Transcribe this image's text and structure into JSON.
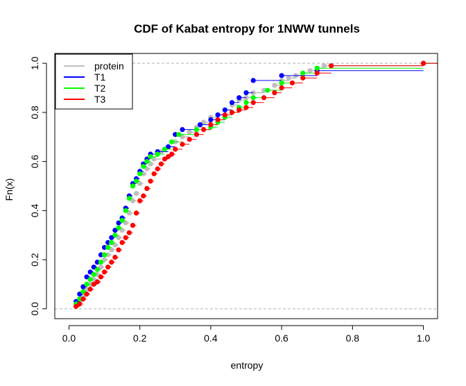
{
  "chart_data": {
    "type": "line",
    "title": "CDF of Kabat entropy for 1NWW  tunnels",
    "xlabel": "entropy",
    "ylabel": "Fn(x)",
    "xlim": [
      -0.04,
      1.04
    ],
    "ylim": [
      -0.04,
      1.04
    ],
    "x_ticks": [
      {
        "value": 0.0,
        "label": "0.0"
      },
      {
        "value": 0.2,
        "label": "0.2"
      },
      {
        "value": 0.4,
        "label": "0.4"
      },
      {
        "value": 0.6,
        "label": "0.6"
      },
      {
        "value": 0.8,
        "label": "0.8"
      },
      {
        "value": 1.0,
        "label": "1.0"
      }
    ],
    "y_ticks": [
      {
        "value": 0.0,
        "label": "0.0"
      },
      {
        "value": 0.2,
        "label": "0.2"
      },
      {
        "value": 0.4,
        "label": "0.4"
      },
      {
        "value": 0.6,
        "label": "0.6"
      },
      {
        "value": 0.8,
        "label": "0.8"
      },
      {
        "value": 1.0,
        "label": "1.0"
      }
    ],
    "reference_lines_y": [
      0,
      1
    ],
    "legend_position": "top-left",
    "series": [
      {
        "name": "protein",
        "color": "#bebebe",
        "x": [
          0.02,
          0.03,
          0.04,
          0.05,
          0.06,
          0.07,
          0.08,
          0.09,
          0.1,
          0.11,
          0.12,
          0.13,
          0.14,
          0.15,
          0.16,
          0.17,
          0.18,
          0.19,
          0.2,
          0.21,
          0.22,
          0.23,
          0.24,
          0.26,
          0.28,
          0.3,
          0.32,
          0.34,
          0.36,
          0.38,
          0.4,
          0.42,
          0.44,
          0.46,
          0.48,
          0.5,
          0.52,
          0.55,
          0.58,
          0.6,
          0.62,
          0.64,
          0.66,
          0.68,
          0.7,
          0.72,
          1.0
        ],
        "y": [
          0.01,
          0.03,
          0.05,
          0.08,
          0.1,
          0.12,
          0.14,
          0.17,
          0.2,
          0.22,
          0.24,
          0.26,
          0.29,
          0.32,
          0.35,
          0.39,
          0.44,
          0.47,
          0.51,
          0.55,
          0.57,
          0.59,
          0.61,
          0.64,
          0.66,
          0.68,
          0.7,
          0.72,
          0.74,
          0.76,
          0.78,
          0.79,
          0.81,
          0.83,
          0.85,
          0.86,
          0.88,
          0.89,
          0.91,
          0.93,
          0.94,
          0.95,
          0.96,
          0.97,
          0.98,
          0.99,
          1.0
        ]
      },
      {
        "name": "T1",
        "color": "#0000ff",
        "x": [
          0.02,
          0.03,
          0.04,
          0.05,
          0.06,
          0.07,
          0.08,
          0.09,
          0.1,
          0.11,
          0.12,
          0.13,
          0.14,
          0.15,
          0.16,
          0.17,
          0.18,
          0.19,
          0.2,
          0.21,
          0.22,
          0.23,
          0.25,
          0.28,
          0.3,
          0.32,
          0.37,
          0.4,
          0.42,
          0.44,
          0.46,
          0.48,
          0.5,
          0.52,
          0.6,
          0.7,
          1.0
        ],
        "y": [
          0.03,
          0.06,
          0.09,
          0.13,
          0.15,
          0.17,
          0.19,
          0.22,
          0.25,
          0.27,
          0.29,
          0.32,
          0.35,
          0.37,
          0.41,
          0.46,
          0.51,
          0.53,
          0.56,
          0.59,
          0.61,
          0.63,
          0.64,
          0.66,
          0.71,
          0.73,
          0.75,
          0.77,
          0.79,
          0.81,
          0.84,
          0.86,
          0.88,
          0.93,
          0.95,
          0.97,
          1.0
        ]
      },
      {
        "name": "T2",
        "color": "#00ff00",
        "x": [
          0.02,
          0.03,
          0.04,
          0.05,
          0.06,
          0.07,
          0.08,
          0.09,
          0.1,
          0.11,
          0.12,
          0.13,
          0.14,
          0.15,
          0.16,
          0.17,
          0.18,
          0.19,
          0.2,
          0.21,
          0.22,
          0.23,
          0.25,
          0.27,
          0.29,
          0.31,
          0.36,
          0.4,
          0.42,
          0.44,
          0.46,
          0.48,
          0.5,
          0.52,
          0.56,
          0.6,
          0.66,
          0.7,
          1.0
        ],
        "y": [
          0.02,
          0.04,
          0.07,
          0.1,
          0.12,
          0.14,
          0.16,
          0.19,
          0.22,
          0.25,
          0.27,
          0.3,
          0.33,
          0.36,
          0.4,
          0.45,
          0.5,
          0.52,
          0.55,
          0.58,
          0.6,
          0.62,
          0.63,
          0.65,
          0.68,
          0.71,
          0.73,
          0.74,
          0.76,
          0.78,
          0.8,
          0.82,
          0.84,
          0.86,
          0.89,
          0.92,
          0.96,
          0.98,
          1.0
        ]
      },
      {
        "name": "T3",
        "color": "#ff0000",
        "x": [
          0.02,
          0.03,
          0.04,
          0.05,
          0.06,
          0.07,
          0.08,
          0.09,
          0.1,
          0.11,
          0.12,
          0.13,
          0.14,
          0.15,
          0.16,
          0.17,
          0.18,
          0.19,
          0.2,
          0.21,
          0.22,
          0.23,
          0.24,
          0.25,
          0.26,
          0.27,
          0.28,
          0.29,
          0.3,
          0.32,
          0.34,
          0.36,
          0.38,
          0.4,
          0.42,
          0.44,
          0.46,
          0.48,
          0.5,
          0.52,
          0.55,
          0.58,
          0.6,
          0.63,
          0.66,
          0.7,
          0.74,
          1.0
        ],
        "y": [
          0.01,
          0.02,
          0.04,
          0.06,
          0.08,
          0.1,
          0.11,
          0.13,
          0.15,
          0.17,
          0.19,
          0.21,
          0.24,
          0.27,
          0.29,
          0.31,
          0.34,
          0.39,
          0.44,
          0.46,
          0.49,
          0.52,
          0.55,
          0.57,
          0.59,
          0.61,
          0.62,
          0.63,
          0.65,
          0.67,
          0.69,
          0.71,
          0.73,
          0.75,
          0.77,
          0.79,
          0.8,
          0.81,
          0.82,
          0.84,
          0.86,
          0.88,
          0.9,
          0.92,
          0.94,
          0.96,
          0.99,
          1.0
        ]
      }
    ]
  }
}
